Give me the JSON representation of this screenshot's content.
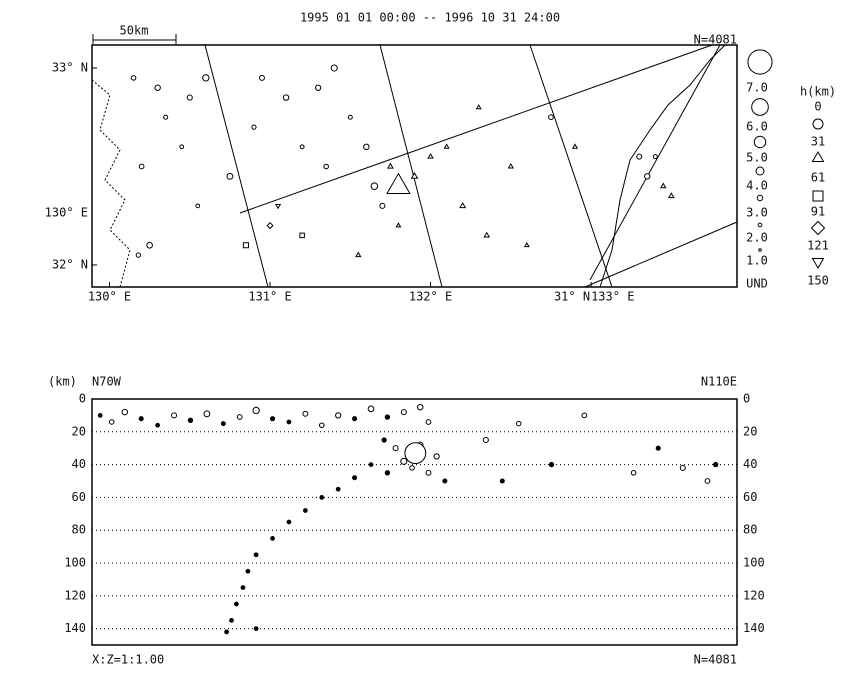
{
  "chart_data": [
    {
      "type": "map",
      "title": "1995 01 01 00:00 -- 1996 10 31 24:00",
      "count_label": "N=4081",
      "scale_label": "50km",
      "xlim": [
        129.891,
        133.909
      ],
      "ylim": [
        31.888,
        33.117
      ],
      "xticks": [
        {
          "value": 130,
          "label": "130° E"
        },
        {
          "value": 131,
          "label": "131° E"
        },
        {
          "value": 132,
          "label": "132° E"
        },
        {
          "value": 133,
          "label": "133° E"
        }
      ],
      "yticks": [
        {
          "value": 33,
          "label": "33° N"
        },
        {
          "value": 32,
          "label": "32° N"
        }
      ],
      "annotations": [
        "130° E",
        "31° N"
      ],
      "magnitude_legend": [
        {
          "value": 7,
          "label": "7.0"
        },
        {
          "value": 6,
          "label": "6.0"
        },
        {
          "value": 5,
          "label": "5.0"
        },
        {
          "value": 4,
          "label": "4.0"
        },
        {
          "value": 3,
          "label": "3.0"
        },
        {
          "value": 2,
          "label": "2.0"
        },
        {
          "value": 1,
          "label": "1.0"
        }
      ],
      "undetermined_label": "UND",
      "depth_legend_title": "h(km)",
      "depth_levels": [
        0,
        31,
        61,
        91,
        121,
        150
      ],
      "points": [
        [
          130.15,
          32.95,
          2.5,
          8
        ],
        [
          130.3,
          32.9,
          3.0,
          10
        ],
        [
          130.35,
          32.75,
          2.2,
          12
        ],
        [
          130.5,
          32.85,
          2.8,
          6
        ],
        [
          130.6,
          32.95,
          3.4,
          9
        ],
        [
          130.45,
          32.6,
          2.0,
          11
        ],
        [
          130.2,
          32.5,
          2.6,
          7
        ],
        [
          130.25,
          32.1,
          3.1,
          10
        ],
        [
          130.18,
          32.05,
          2.4,
          9
        ],
        [
          130.55,
          32.3,
          2.0,
          12
        ],
        [
          130.75,
          32.45,
          3.2,
          8
        ],
        [
          130.9,
          32.7,
          2.3,
          10
        ],
        [
          130.95,
          32.95,
          2.7,
          9
        ],
        [
          131.1,
          32.85,
          3.0,
          12
        ],
        [
          131.2,
          32.6,
          2.1,
          11
        ],
        [
          131.3,
          32.9,
          2.9,
          10
        ],
        [
          131.4,
          33.0,
          3.3,
          9
        ],
        [
          131.35,
          32.5,
          2.5,
          10
        ],
        [
          131.5,
          32.75,
          2.2,
          20
        ],
        [
          131.6,
          32.6,
          3.0,
          25
        ],
        [
          131.65,
          32.4,
          3.5,
          30
        ],
        [
          131.7,
          32.3,
          2.8,
          28
        ],
        [
          131.8,
          32.2,
          2.0,
          40
        ],
        [
          131.75,
          32.5,
          2.6,
          35
        ],
        [
          131.9,
          32.45,
          3.0,
          33
        ],
        [
          132.0,
          32.55,
          2.4,
          45
        ],
        [
          132.1,
          32.6,
          2.2,
          42
        ],
        [
          132.2,
          32.3,
          2.7,
          38
        ],
        [
          132.3,
          32.8,
          2.1,
          44
        ],
        [
          132.5,
          32.5,
          2.3,
          46
        ],
        [
          132.6,
          32.1,
          2.0,
          40
        ],
        [
          132.35,
          32.15,
          2.5,
          50
        ],
        [
          132.75,
          32.75,
          2.6,
          20
        ],
        [
          132.9,
          32.6,
          2.2,
          42
        ],
        [
          133.3,
          32.55,
          2.8,
          25
        ],
        [
          133.35,
          32.45,
          3.0,
          30
        ],
        [
          133.45,
          32.4,
          2.4,
          40
        ],
        [
          133.5,
          32.35,
          2.6,
          42
        ],
        [
          133.4,
          32.55,
          2.2,
          28
        ],
        [
          130.85,
          32.1,
          2.8,
          65
        ],
        [
          131.0,
          32.2,
          2.4,
          95
        ],
        [
          131.05,
          32.3,
          2.2,
          130
        ],
        [
          131.2,
          32.15,
          2.5,
          75
        ],
        [
          131.55,
          32.05,
          2.3,
          60
        ],
        [
          131.8,
          32.4,
          6.6,
          40
        ]
      ]
    },
    {
      "type": "scatter",
      "y_unit_label": "(km)",
      "left_label": "N70W",
      "right_label": "N110E",
      "ratio_label": "X:Z=1:1.00",
      "count_label": "N=4081",
      "xlim": [
        0,
        393
      ],
      "ylim": [
        150,
        0
      ],
      "yticks": [
        0,
        20,
        40,
        60,
        80,
        100,
        120,
        140
      ],
      "grid": true,
      "points": [
        [
          5,
          10,
          2.0
        ],
        [
          12,
          14,
          2.5
        ],
        [
          20,
          8,
          3.0
        ],
        [
          30,
          12,
          2.2
        ],
        [
          40,
          16,
          2.0
        ],
        [
          50,
          10,
          2.8
        ],
        [
          60,
          13,
          2.4
        ],
        [
          70,
          9,
          3.2
        ],
        [
          80,
          15,
          2.1
        ],
        [
          90,
          11,
          2.6
        ],
        [
          100,
          7,
          3.4
        ],
        [
          110,
          12,
          2.3
        ],
        [
          120,
          14,
          2.0
        ],
        [
          130,
          9,
          2.7
        ],
        [
          140,
          16,
          2.5
        ],
        [
          150,
          10,
          2.9
        ],
        [
          160,
          12,
          2.2
        ],
        [
          170,
          6,
          3.1
        ],
        [
          180,
          11,
          2.4
        ],
        [
          190,
          8,
          2.8
        ],
        [
          200,
          5,
          3.0
        ],
        [
          205,
          14,
          2.6
        ],
        [
          178,
          25,
          2.3
        ],
        [
          185,
          30,
          2.8
        ],
        [
          190,
          38,
          3.3
        ],
        [
          195,
          42,
          2.5
        ],
        [
          200,
          28,
          3.0
        ],
        [
          205,
          45,
          2.7
        ],
        [
          210,
          35,
          2.9
        ],
        [
          215,
          50,
          2.2
        ],
        [
          180,
          45,
          2.4
        ],
        [
          170,
          40,
          2.0
        ],
        [
          160,
          48,
          2.2
        ],
        [
          150,
          55,
          2.0
        ],
        [
          140,
          60,
          2.0
        ],
        [
          130,
          68,
          2.0
        ],
        [
          120,
          75,
          2.0
        ],
        [
          110,
          85,
          2.0
        ],
        [
          100,
          95,
          2.0
        ],
        [
          95,
          105,
          2.0
        ],
        [
          92,
          115,
          2.0
        ],
        [
          88,
          125,
          2.0
        ],
        [
          85,
          135,
          2.0
        ],
        [
          82,
          142,
          2.0
        ],
        [
          100,
          140,
          2.0
        ],
        [
          197,
          33,
          6.6
        ],
        [
          240,
          25,
          2.8
        ],
        [
          260,
          15,
          2.5
        ],
        [
          280,
          40,
          2.4
        ],
        [
          300,
          10,
          2.6
        ],
        [
          330,
          45,
          2.5
        ],
        [
          345,
          30,
          2.2
        ],
        [
          360,
          42,
          2.8
        ],
        [
          375,
          50,
          2.6
        ],
        [
          380,
          40,
          2.4
        ],
        [
          250,
          50,
          2.2
        ]
      ]
    }
  ]
}
